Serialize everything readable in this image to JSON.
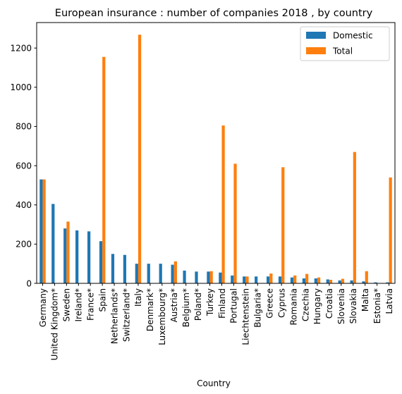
{
  "chart_data": {
    "type": "bar",
    "title": "European insurance : number of companies 2018 , by country",
    "xlabel": "Country",
    "ylabel": "",
    "ylim": [
      0,
      1330
    ],
    "yticks": [
      0,
      200,
      400,
      600,
      800,
      1000,
      1200
    ],
    "legend_position": "top-right",
    "grid": false,
    "categories": [
      "Germany",
      "United Kingdom*",
      "Sweden",
      "Ireland*",
      "France*",
      "Spain",
      "Netherlands*",
      "Switzerland*",
      "Italy",
      "Denmark*",
      "Luxembourg*",
      "Austria*",
      "Belgium*",
      "Poland*",
      "Turkey",
      "Finland",
      "Portugal",
      "Liechtenstein",
      "Bulgaria*",
      "Greece",
      "Cyprus",
      "Romania",
      "Czechia",
      "Hungary",
      "Croatia",
      "Slovenia",
      "Slovakia",
      "Malta",
      "Estonia*",
      "Latvia"
    ],
    "series": [
      {
        "name": "Domestic",
        "color": "#1f77b4",
        "values": [
          530,
          405,
          280,
          270,
          265,
          215,
          150,
          145,
          100,
          100,
          100,
          95,
          65,
          60,
          60,
          55,
          40,
          35,
          35,
          35,
          35,
          30,
          25,
          25,
          20,
          15,
          15,
          10,
          5,
          5
        ]
      },
      {
        "name": "Total",
        "color": "#ff7f0e",
        "values": [
          530,
          null,
          315,
          null,
          null,
          1155,
          null,
          null,
          1268,
          null,
          null,
          112,
          null,
          null,
          62,
          805,
          610,
          35,
          null,
          50,
          592,
          40,
          48,
          30,
          18,
          23,
          670,
          62,
          null,
          540
        ]
      }
    ]
  }
}
